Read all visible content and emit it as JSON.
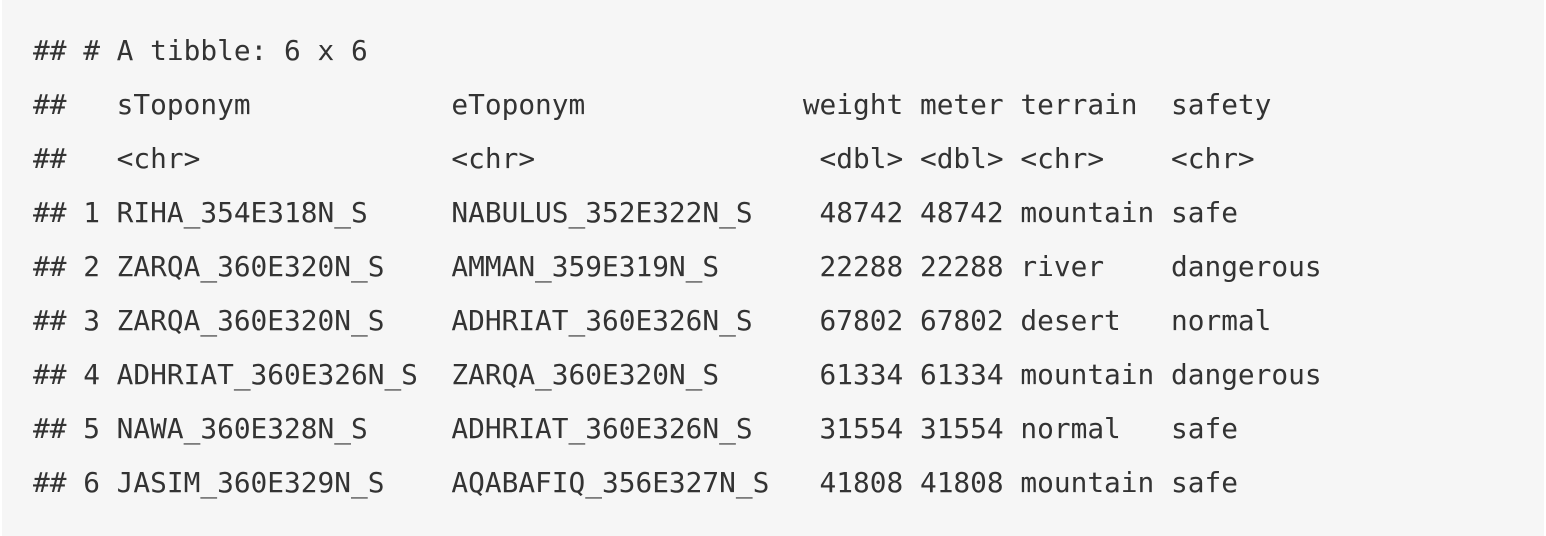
{
  "output": {
    "lines": [
      "## # A tibble: 6 x 6",
      "##   sToponym            eToponym             weight meter terrain  safety",
      "##   <chr>               <chr>                 <dbl> <dbl> <chr>    <chr>",
      "## 1 RIHA_354E318N_S     NABULUS_352E322N_S    48742 48742 mountain safe",
      "## 2 ZARQA_360E320N_S    AMMAN_359E319N_S      22288 22288 river    dangerous",
      "## 3 ZARQA_360E320N_S    ADHRIAT_360E326N_S    67802 67802 desert   normal",
      "## 4 ADHRIAT_360E326N_S  ZARQA_360E320N_S      61334 61334 mountain dangerous",
      "## 5 NAWA_360E328N_S     ADHRIAT_360E326N_S    31554 31554 normal   safe",
      "## 6 JASIM_360E329N_S    AQABAFIQ_356E327N_S   41808 41808 mountain safe"
    ]
  }
}
